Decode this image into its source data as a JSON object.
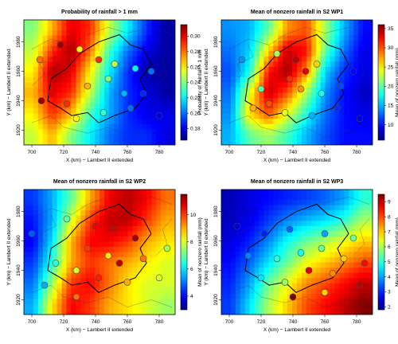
{
  "panels": [
    {
      "title": "Probability of rainfall > 1 mm",
      "xlabel": "X (km) − Lambert II extended",
      "ylabel": "Y (km) − Lambert II extended",
      "cb_label": "Probability of rainfall > 1 mm",
      "x_ticks": [
        "700",
        "720",
        "740",
        "760",
        "780"
      ],
      "y_ticks": [
        "1920",
        "1940",
        "1960",
        "1980"
      ],
      "cb_ticks": [
        "0.18",
        "0.20",
        "0.22",
        "0.24",
        "0.26",
        "0.28",
        "0.30"
      ],
      "cb_range": [
        0.165,
        0.315
      ],
      "field": [
        [
          0.24,
          0.27,
          0.3,
          0.29,
          0.25,
          0.22,
          0.19,
          0.17
        ],
        [
          0.25,
          0.29,
          0.31,
          0.28,
          0.23,
          0.2,
          0.18,
          0.17
        ],
        [
          0.26,
          0.31,
          0.3,
          0.26,
          0.22,
          0.19,
          0.17,
          0.17
        ],
        [
          0.27,
          0.3,
          0.29,
          0.25,
          0.21,
          0.19,
          0.18,
          0.17
        ],
        [
          0.26,
          0.29,
          0.27,
          0.23,
          0.21,
          0.19,
          0.18,
          0.18
        ],
        [
          0.25,
          0.27,
          0.24,
          0.22,
          0.2,
          0.19,
          0.19,
          0.18
        ]
      ],
      "stations": [
        {
          "x": 705,
          "y": 1968,
          "v": 0.28
        },
        {
          "x": 718,
          "y": 1978,
          "v": 0.31
        },
        {
          "x": 730,
          "y": 1975,
          "v": 0.26
        },
        {
          "x": 742,
          "y": 1968,
          "v": 0.29
        },
        {
          "x": 752,
          "y": 1965,
          "v": 0.25
        },
        {
          "x": 765,
          "y": 1962,
          "v": 0.22
        },
        {
          "x": 775,
          "y": 1960,
          "v": 0.2
        },
        {
          "x": 712,
          "y": 1945,
          "v": 0.3
        },
        {
          "x": 722,
          "y": 1938,
          "v": 0.29
        },
        {
          "x": 735,
          "y": 1950,
          "v": 0.27
        },
        {
          "x": 748,
          "y": 1955,
          "v": 0.24
        },
        {
          "x": 758,
          "y": 1945,
          "v": 0.21
        },
        {
          "x": 770,
          "y": 1945,
          "v": 0.19
        },
        {
          "x": 762,
          "y": 1935,
          "v": 0.2
        },
        {
          "x": 745,
          "y": 1932,
          "v": 0.23
        },
        {
          "x": 728,
          "y": 1928,
          "v": 0.26
        },
        {
          "x": 706,
          "y": 1940,
          "v": 0.31
        },
        {
          "x": 780,
          "y": 1930,
          "v": 0.18
        }
      ]
    },
    {
      "title": "Mean of nonzero rainfall in S2 WP1",
      "xlabel": "X (km) − Lambert II extended",
      "ylabel": "Y (km) − Lambert II extended",
      "cb_label": "Mean of nonzero rainfall (mm)",
      "x_ticks": [
        "700",
        "720",
        "740",
        "760",
        "780"
      ],
      "y_ticks": [
        "1920",
        "1940",
        "1960",
        "1980"
      ],
      "cb_ticks": [
        "10",
        "15",
        "20",
        "25",
        "30",
        "35"
      ],
      "cb_range": [
        6,
        36
      ],
      "field": [
        [
          14,
          15,
          20,
          28,
          30,
          22,
          15,
          10
        ],
        [
          13,
          16,
          26,
          34,
          32,
          20,
          13,
          9
        ],
        [
          12,
          18,
          32,
          35,
          28,
          16,
          11,
          9
        ],
        [
          13,
          24,
          34,
          30,
          22,
          14,
          10,
          8
        ],
        [
          14,
          26,
          30,
          24,
          18,
          13,
          10,
          9
        ],
        [
          15,
          20,
          22,
          19,
          15,
          12,
          10,
          10
        ]
      ],
      "stations": [
        {
          "x": 708,
          "y": 1968,
          "v": 14
        },
        {
          "x": 730,
          "y": 1972,
          "v": 22
        },
        {
          "x": 742,
          "y": 1968,
          "v": 34
        },
        {
          "x": 748,
          "y": 1960,
          "v": 33
        },
        {
          "x": 755,
          "y": 1965,
          "v": 26
        },
        {
          "x": 738,
          "y": 1955,
          "v": 31
        },
        {
          "x": 745,
          "y": 1948,
          "v": 28
        },
        {
          "x": 758,
          "y": 1945,
          "v": 18
        },
        {
          "x": 770,
          "y": 1950,
          "v": 12
        },
        {
          "x": 778,
          "y": 1960,
          "v": 10
        },
        {
          "x": 725,
          "y": 1938,
          "v": 30
        },
        {
          "x": 715,
          "y": 1935,
          "v": 27
        },
        {
          "x": 735,
          "y": 1932,
          "v": 24
        },
        {
          "x": 752,
          "y": 1930,
          "v": 15
        },
        {
          "x": 768,
          "y": 1935,
          "v": 11
        },
        {
          "x": 782,
          "y": 1928,
          "v": 9
        },
        {
          "x": 720,
          "y": 1948,
          "v": 20
        }
      ]
    },
    {
      "title": "Mean of nonzero rainfall in S2 WP2",
      "xlabel": "X (km) − Lambert II extended",
      "ylabel": "Y (km) − Lambert II extended",
      "cb_label": "Mean of nonzero rainfall (mm)",
      "x_ticks": [
        "700",
        "720",
        "740",
        "760",
        "780"
      ],
      "y_ticks": [
        "1920",
        "1940",
        "1960",
        "1980"
      ],
      "cb_ticks": [
        "4",
        "6",
        "8",
        "10"
      ],
      "cb_range": [
        3,
        11.5
      ],
      "field": [
        [
          4.5,
          5.5,
          7.0,
          9.0,
          10.5,
          11.0,
          10.5,
          9.5
        ],
        [
          4.2,
          5.5,
          8.0,
          10.0,
          11.0,
          11.0,
          10.0,
          9.0
        ],
        [
          4.0,
          6.0,
          9.0,
          10.5,
          10.5,
          10.0,
          9.0,
          8.5
        ],
        [
          4.5,
          6.5,
          9.0,
          10.0,
          9.5,
          9.0,
          8.5,
          8.0
        ],
        [
          5.0,
          7.5,
          10.0,
          10.5,
          9.5,
          8.5,
          8.0,
          8.0
        ],
        [
          5.5,
          8.5,
          10.5,
          10.0,
          9.0,
          8.5,
          8.0,
          7.5
        ]
      ],
      "stations": [
        {
          "x": 700,
          "y": 1965,
          "v": 4.8
        },
        {
          "x": 722,
          "y": 1975,
          "v": 7.0
        },
        {
          "x": 740,
          "y": 1970,
          "v": 10.5
        },
        {
          "x": 752,
          "y": 1968,
          "v": 10.8
        },
        {
          "x": 765,
          "y": 1962,
          "v": 11.2
        },
        {
          "x": 735,
          "y": 1955,
          "v": 10.0
        },
        {
          "x": 748,
          "y": 1950,
          "v": 8.5
        },
        {
          "x": 755,
          "y": 1945,
          "v": 11.0
        },
        {
          "x": 770,
          "y": 1948,
          "v": 9.5
        },
        {
          "x": 785,
          "y": 1955,
          "v": 7.5
        },
        {
          "x": 715,
          "y": 1945,
          "v": 6.5
        },
        {
          "x": 728,
          "y": 1940,
          "v": 8.0
        },
        {
          "x": 742,
          "y": 1935,
          "v": 10.2
        },
        {
          "x": 760,
          "y": 1932,
          "v": 9.0
        },
        {
          "x": 780,
          "y": 1935,
          "v": 8.0
        },
        {
          "x": 728,
          "y": 1922,
          "v": 9.5
        },
        {
          "x": 708,
          "y": 1930,
          "v": 5.5
        }
      ]
    },
    {
      "title": "Mean of nonzero rainfall in S2 WP3",
      "xlabel": "X (km) − Lambert II extended",
      "ylabel": "Y (km) − Lambert II extended",
      "cb_label": "Mean of nonzero rainfall (mm)",
      "x_ticks": [
        "700",
        "720",
        "740",
        "760",
        "780"
      ],
      "y_ticks": [
        "1920",
        "1940",
        "1960",
        "1980"
      ],
      "cb_ticks": [
        "2",
        "3",
        "4",
        "5",
        "6",
        "7",
        "8",
        "9"
      ],
      "cb_range": [
        1.8,
        9.5
      ],
      "field": [
        [
          2.2,
          2.5,
          2.8,
          3.0,
          3.2,
          3.5,
          4.0,
          5.0
        ],
        [
          2.3,
          2.6,
          3.2,
          3.8,
          4.2,
          4.5,
          5.0,
          6.0
        ],
        [
          2.5,
          3.0,
          3.8,
          4.8,
          5.5,
          6.0,
          6.5,
          7.0
        ],
        [
          2.8,
          3.5,
          4.5,
          5.5,
          6.5,
          7.0,
          7.5,
          8.0
        ],
        [
          3.0,
          4.0,
          5.5,
          6.5,
          7.5,
          8.0,
          8.5,
          9.0
        ],
        [
          3.2,
          4.5,
          6.0,
          7.0,
          8.0,
          8.5,
          9.0,
          9.5
        ]
      ],
      "stations": [
        {
          "x": 705,
          "y": 1970,
          "v": 2.5
        },
        {
          "x": 722,
          "y": 1965,
          "v": 3.0
        },
        {
          "x": 738,
          "y": 1968,
          "v": 3.5
        },
        {
          "x": 760,
          "y": 1965,
          "v": 4.0
        },
        {
          "x": 778,
          "y": 1962,
          "v": 5.5
        },
        {
          "x": 712,
          "y": 1950,
          "v": 3.8
        },
        {
          "x": 730,
          "y": 1948,
          "v": 5.0
        },
        {
          "x": 745,
          "y": 1952,
          "v": 4.8
        },
        {
          "x": 758,
          "y": 1955,
          "v": 5.5
        },
        {
          "x": 772,
          "y": 1948,
          "v": 7.0
        },
        {
          "x": 785,
          "y": 1945,
          "v": 8.5
        },
        {
          "x": 720,
          "y": 1935,
          "v": 4.5
        },
        {
          "x": 735,
          "y": 1932,
          "v": 5.8
        },
        {
          "x": 750,
          "y": 1940,
          "v": 8.8
        },
        {
          "x": 765,
          "y": 1938,
          "v": 7.5
        },
        {
          "x": 782,
          "y": 1930,
          "v": 9.0
        },
        {
          "x": 740,
          "y": 1922,
          "v": 9.5
        },
        {
          "x": 760,
          "y": 1925,
          "v": 7.0
        }
      ]
    }
  ]
}
